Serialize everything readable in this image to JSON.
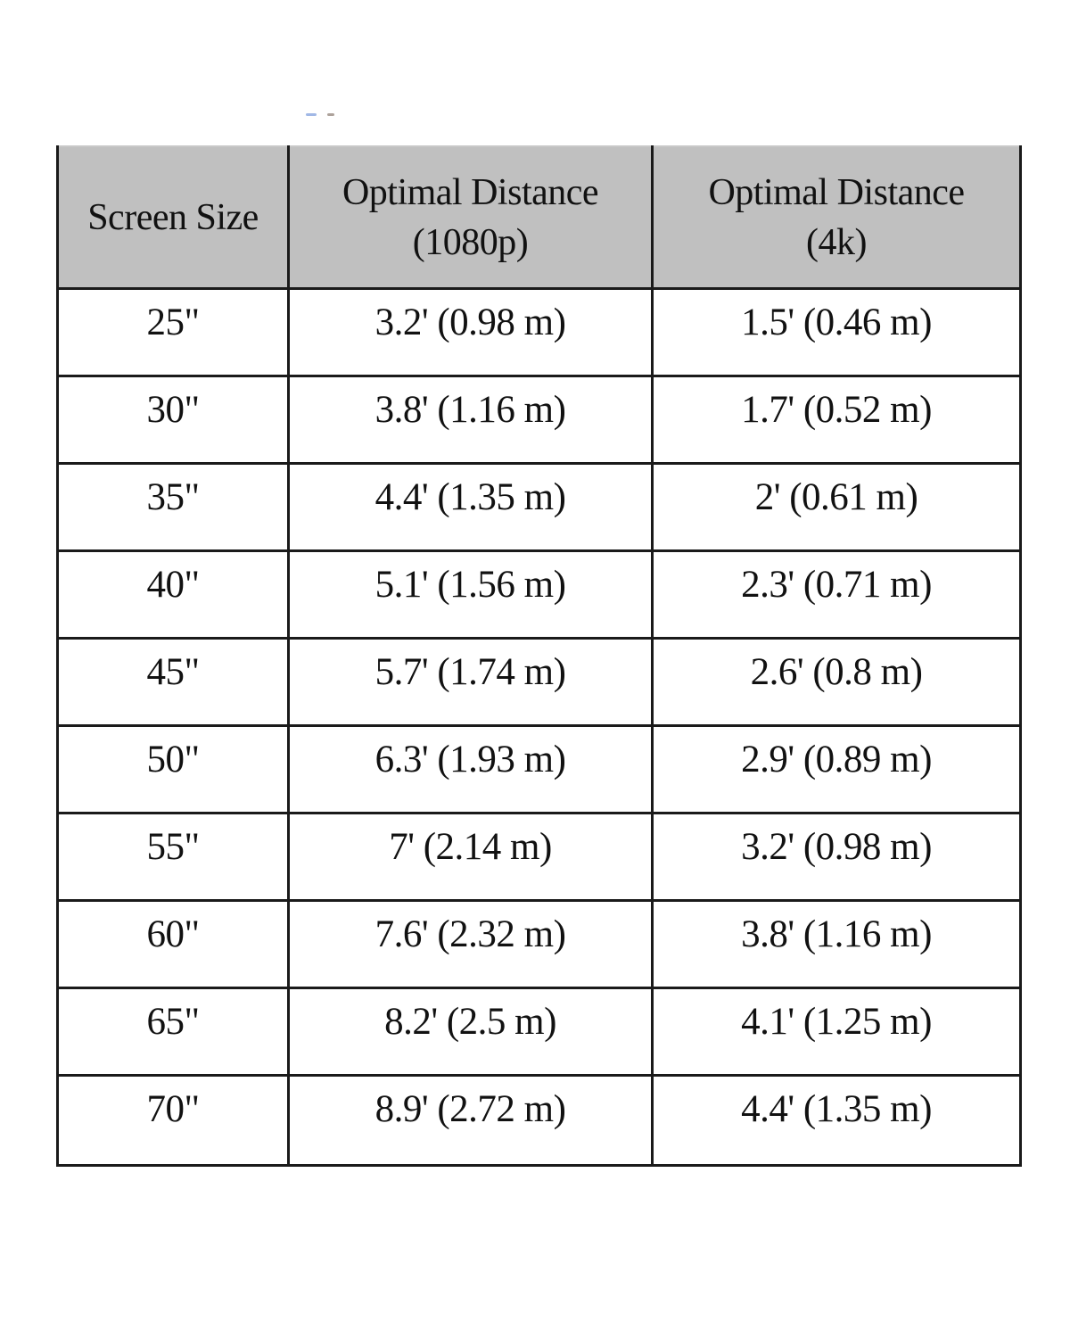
{
  "table": {
    "headers": [
      {
        "lines": [
          "Screen Size"
        ]
      },
      {
        "lines": [
          "Optimal Distance",
          "(1080p)"
        ]
      },
      {
        "lines": [
          "Optimal Distance",
          "(4k)"
        ]
      }
    ],
    "rows": [
      {
        "size": "25\"",
        "d1080": "3.2' (0.98 m)",
        "d4k": "1.5' (0.46 m)"
      },
      {
        "size": "30\"",
        "d1080": "3.8' (1.16 m)",
        "d4k": "1.7' (0.52 m)"
      },
      {
        "size": "35\"",
        "d1080": "4.4' (1.35 m)",
        "d4k": "2' (0.61 m)"
      },
      {
        "size": "40\"",
        "d1080": "5.1' (1.56 m)",
        "d4k": "2.3' (0.71 m)"
      },
      {
        "size": "45\"",
        "d1080": "5.7' (1.74 m)",
        "d4k": "2.6' (0.8 m)"
      },
      {
        "size": "50\"",
        "d1080": "6.3' (1.93 m)",
        "d4k": "2.9' (0.89 m)"
      },
      {
        "size": "55\"",
        "d1080": "7' (2.14 m)",
        "d4k": "3.2' (0.98 m)"
      },
      {
        "size": "60\"",
        "d1080": "7.6' (2.32 m)",
        "d4k": "3.8' (1.16 m)"
      },
      {
        "size": "65\"",
        "d1080": "8.2' (2.5 m)",
        "d4k": "4.1' (1.25 m)"
      },
      {
        "size": "70\"",
        "d1080": "8.9' (2.72 m)",
        "d4k": "4.4' (1.35 m)"
      }
    ]
  },
  "colors": {
    "header_bg": "#c0c0c0",
    "border": "#1a1a1a",
    "text": "#111111",
    "page_bg": "#ffffff"
  }
}
